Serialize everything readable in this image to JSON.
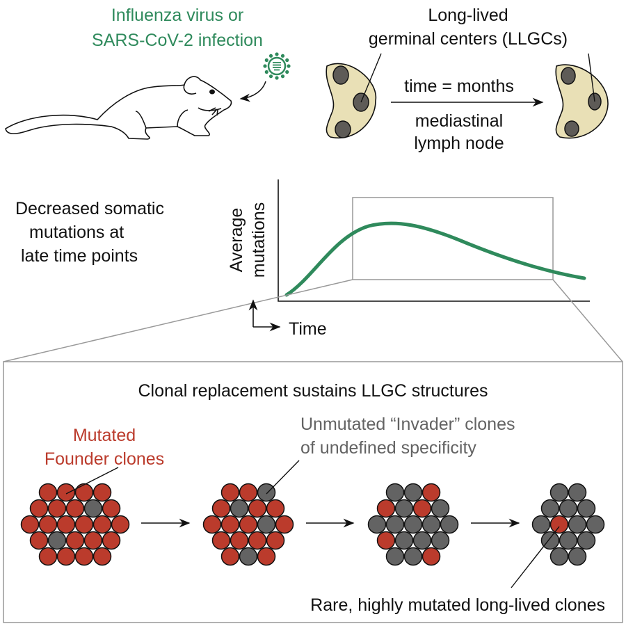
{
  "colors": {
    "green": "#2f8a5c",
    "red": "#bb3b2c",
    "gray": "#636363",
    "node_fill": "#e9e0b6",
    "gc_fill": "#5e5b57"
  },
  "infection": {
    "line1": "Influenza virus or",
    "line2": "SARS-CoV-2 infection",
    "icons": [
      "mouse-icon",
      "virus-icon"
    ]
  },
  "llgc": {
    "line1": "Long-lived",
    "line2": "germinal centers (LLGCs)",
    "arrow_top": "time = months",
    "arrow_bottom1": "mediastinal",
    "arrow_bottom2": "lymph node"
  },
  "mutation_plot": {
    "caption": [
      "Decreased somatic",
      "mutations at",
      "late time points"
    ],
    "ylabel1": "Average",
    "ylabel2": "mutations",
    "xlabel": "Time"
  },
  "clonal": {
    "title": "Clonal replacement sustains LLGC structures",
    "founder": [
      "Mutated",
      "Founder clones"
    ],
    "invader": [
      "Unmutated “Invader” clones",
      "of undefined specificity"
    ],
    "rare": "Rare, highly mutated long-lived clones",
    "clusters": [
      [
        "RRRR",
        "RRRGR",
        "RRRRRR",
        "RGRRR",
        "RRRR"
      ],
      [
        "RRG",
        "RGRR",
        "RRRGR",
        "RRRR",
        "RGR"
      ],
      [
        "GGR",
        "RGRG",
        "GGGGG",
        "RGGG",
        "GGR"
      ],
      [
        "GG",
        "GGG",
        "GRGG",
        "GGG",
        "GG"
      ]
    ]
  }
}
